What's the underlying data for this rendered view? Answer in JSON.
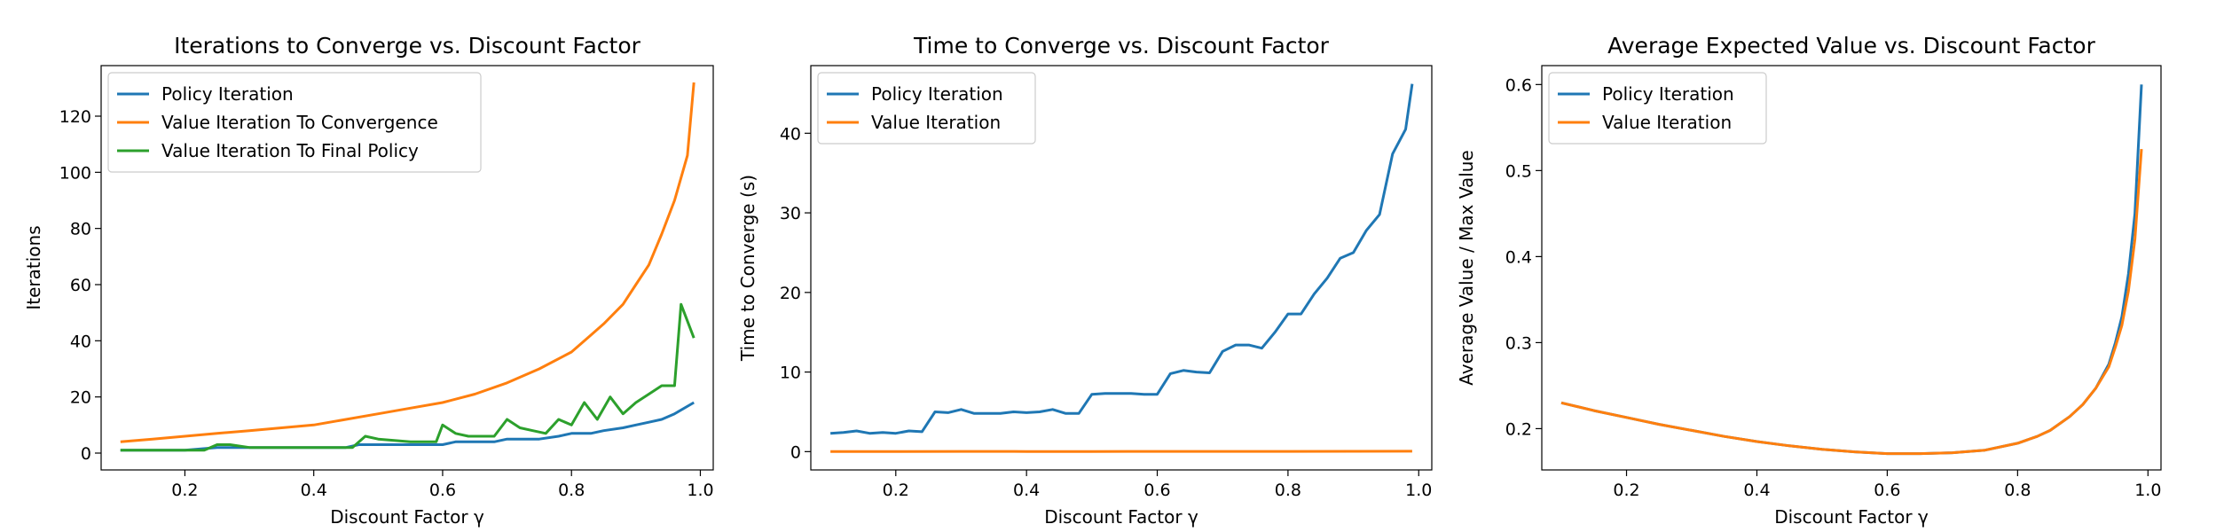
{
  "chart_data": [
    {
      "type": "line",
      "title": "Iterations to Converge vs. Discount Factor",
      "xlabel": "Discount Factor γ",
      "ylabel": "Iterations",
      "xlim": [
        0.07,
        1.02
      ],
      "ylim": [
        -6,
        138
      ],
      "xticks": [
        0.2,
        0.4,
        0.6,
        0.8,
        1.0
      ],
      "xtick_labels": [
        "0.2",
        "0.4",
        "0.6",
        "0.8",
        "1.0"
      ],
      "yticks": [
        0,
        20,
        40,
        60,
        80,
        100,
        120
      ],
      "ytick_labels": [
        "0",
        "20",
        "40",
        "60",
        "80",
        "100",
        "120"
      ],
      "legend": "top-left",
      "grid": false,
      "series": [
        {
          "name": "Policy Iteration",
          "color": "#1f77b4",
          "x": [
            0.1,
            0.15,
            0.2,
            0.25,
            0.3,
            0.35,
            0.4,
            0.45,
            0.47,
            0.5,
            0.55,
            0.6,
            0.62,
            0.65,
            0.68,
            0.7,
            0.75,
            0.78,
            0.8,
            0.83,
            0.85,
            0.88,
            0.9,
            0.92,
            0.94,
            0.96,
            0.99
          ],
          "y": [
            1,
            1,
            1,
            2,
            2,
            2,
            2,
            2,
            3,
            3,
            3,
            3,
            4,
            4,
            4,
            5,
            5,
            6,
            7,
            7,
            8,
            9,
            10,
            11,
            12,
            14,
            18
          ]
        },
        {
          "name": "Value Iteration To Convergence",
          "color": "#ff7f0e",
          "x": [
            0.1,
            0.15,
            0.2,
            0.25,
            0.3,
            0.35,
            0.4,
            0.45,
            0.5,
            0.55,
            0.6,
            0.65,
            0.7,
            0.75,
            0.8,
            0.83,
            0.85,
            0.88,
            0.9,
            0.92,
            0.94,
            0.96,
            0.98,
            0.99
          ],
          "y": [
            4,
            5,
            6,
            7,
            8,
            9,
            10,
            12,
            14,
            16,
            18,
            21,
            25,
            30,
            36,
            42,
            46,
            53,
            60,
            67,
            78,
            90,
            106,
            132
          ]
        },
        {
          "name": "Value Iteration To Final Policy",
          "color": "#2ca02c",
          "x": [
            0.1,
            0.15,
            0.2,
            0.23,
            0.25,
            0.27,
            0.3,
            0.35,
            0.4,
            0.45,
            0.46,
            0.48,
            0.5,
            0.55,
            0.59,
            0.6,
            0.62,
            0.64,
            0.66,
            0.68,
            0.7,
            0.72,
            0.74,
            0.76,
            0.78,
            0.8,
            0.82,
            0.84,
            0.86,
            0.88,
            0.9,
            0.92,
            0.94,
            0.96,
            0.97,
            0.99
          ],
          "y": [
            1,
            1,
            1,
            1,
            3,
            3,
            2,
            2,
            2,
            2,
            2,
            6,
            5,
            4,
            4,
            10,
            7,
            6,
            6,
            6,
            12,
            9,
            8,
            7,
            12,
            10,
            18,
            12,
            20,
            14,
            18,
            21,
            24,
            24,
            53,
            41
          ]
        }
      ]
    },
    {
      "type": "line",
      "title": "Time to Converge vs. Discount Factor",
      "xlabel": "Discount Factor γ",
      "ylabel": "Time to Converge (s)",
      "xlim": [
        0.07,
        1.02
      ],
      "ylim": [
        -2.3,
        48.5
      ],
      "xticks": [
        0.2,
        0.4,
        0.6,
        0.8,
        1.0
      ],
      "xtick_labels": [
        "0.2",
        "0.4",
        "0.6",
        "0.8",
        "1.0"
      ],
      "yticks": [
        0,
        10,
        20,
        30,
        40
      ],
      "ytick_labels": [
        "0",
        "10",
        "20",
        "30",
        "40"
      ],
      "legend": "top-left",
      "grid": false,
      "series": [
        {
          "name": "Policy Iteration",
          "color": "#1f77b4",
          "x": [
            0.1,
            0.12,
            0.14,
            0.16,
            0.18,
            0.2,
            0.22,
            0.24,
            0.26,
            0.28,
            0.3,
            0.32,
            0.34,
            0.36,
            0.38,
            0.4,
            0.42,
            0.44,
            0.46,
            0.48,
            0.5,
            0.52,
            0.54,
            0.56,
            0.58,
            0.6,
            0.62,
            0.64,
            0.66,
            0.68,
            0.7,
            0.72,
            0.74,
            0.76,
            0.78,
            0.8,
            0.82,
            0.84,
            0.86,
            0.88,
            0.9,
            0.92,
            0.94,
            0.96,
            0.98,
            0.99
          ],
          "y": [
            2.3,
            2.4,
            2.6,
            2.3,
            2.4,
            2.3,
            2.6,
            2.5,
            5.0,
            4.9,
            5.3,
            4.8,
            4.8,
            4.8,
            5.0,
            4.9,
            5.0,
            5.3,
            4.8,
            4.8,
            7.2,
            7.3,
            7.3,
            7.3,
            7.2,
            7.2,
            9.8,
            10.2,
            10.0,
            9.9,
            12.6,
            13.4,
            13.4,
            13.0,
            15.0,
            17.3,
            17.3,
            19.8,
            21.8,
            24.3,
            25.0,
            27.8,
            29.8,
            37.4,
            40.5,
            46.2
          ]
        },
        {
          "name": "Value Iteration",
          "color": "#ff7f0e",
          "x": [
            0.1,
            0.2,
            0.3,
            0.4,
            0.5,
            0.6,
            0.7,
            0.8,
            0.9,
            0.99
          ],
          "y": [
            0.02,
            0.02,
            0.03,
            0.02,
            0.02,
            0.03,
            0.03,
            0.03,
            0.04,
            0.05
          ]
        }
      ]
    },
    {
      "type": "line",
      "title": "Average Expected Value vs. Discount Factor",
      "xlabel": "Discount Factor γ",
      "ylabel": "Average Value / Max Value",
      "xlim": [
        0.07,
        1.02
      ],
      "ylim": [
        0.152,
        0.622
      ],
      "xticks": [
        0.2,
        0.4,
        0.6,
        0.8,
        1.0
      ],
      "xtick_labels": [
        "0.2",
        "0.4",
        "0.6",
        "0.8",
        "1.0"
      ],
      "yticks": [
        0.2,
        0.3,
        0.4,
        0.5,
        0.6
      ],
      "ytick_labels": [
        "0.2",
        "0.3",
        "0.4",
        "0.5",
        "0.6"
      ],
      "legend": "top-left",
      "grid": false,
      "series": [
        {
          "name": "Policy Iteration",
          "color": "#1f77b4",
          "x": [
            0.1,
            0.15,
            0.2,
            0.25,
            0.3,
            0.35,
            0.4,
            0.45,
            0.5,
            0.55,
            0.6,
            0.65,
            0.7,
            0.75,
            0.8,
            0.83,
            0.85,
            0.88,
            0.9,
            0.92,
            0.94,
            0.95,
            0.96,
            0.97,
            0.98,
            0.99
          ],
          "y": [
            0.23,
            0.221,
            0.213,
            0.205,
            0.198,
            0.191,
            0.185,
            0.18,
            0.176,
            0.173,
            0.171,
            0.171,
            0.172,
            0.175,
            0.183,
            0.191,
            0.198,
            0.214,
            0.228,
            0.247,
            0.275,
            0.3,
            0.33,
            0.38,
            0.45,
            0.6
          ]
        },
        {
          "name": "Value Iteration",
          "color": "#ff7f0e",
          "x": [
            0.1,
            0.15,
            0.2,
            0.25,
            0.3,
            0.35,
            0.4,
            0.45,
            0.5,
            0.55,
            0.6,
            0.65,
            0.7,
            0.75,
            0.8,
            0.83,
            0.85,
            0.88,
            0.9,
            0.92,
            0.94,
            0.95,
            0.96,
            0.97,
            0.98,
            0.99
          ],
          "y": [
            0.23,
            0.221,
            0.213,
            0.205,
            0.198,
            0.191,
            0.185,
            0.18,
            0.176,
            0.173,
            0.171,
            0.171,
            0.172,
            0.175,
            0.183,
            0.191,
            0.198,
            0.214,
            0.228,
            0.247,
            0.272,
            0.295,
            0.32,
            0.36,
            0.42,
            0.525
          ]
        }
      ]
    }
  ]
}
